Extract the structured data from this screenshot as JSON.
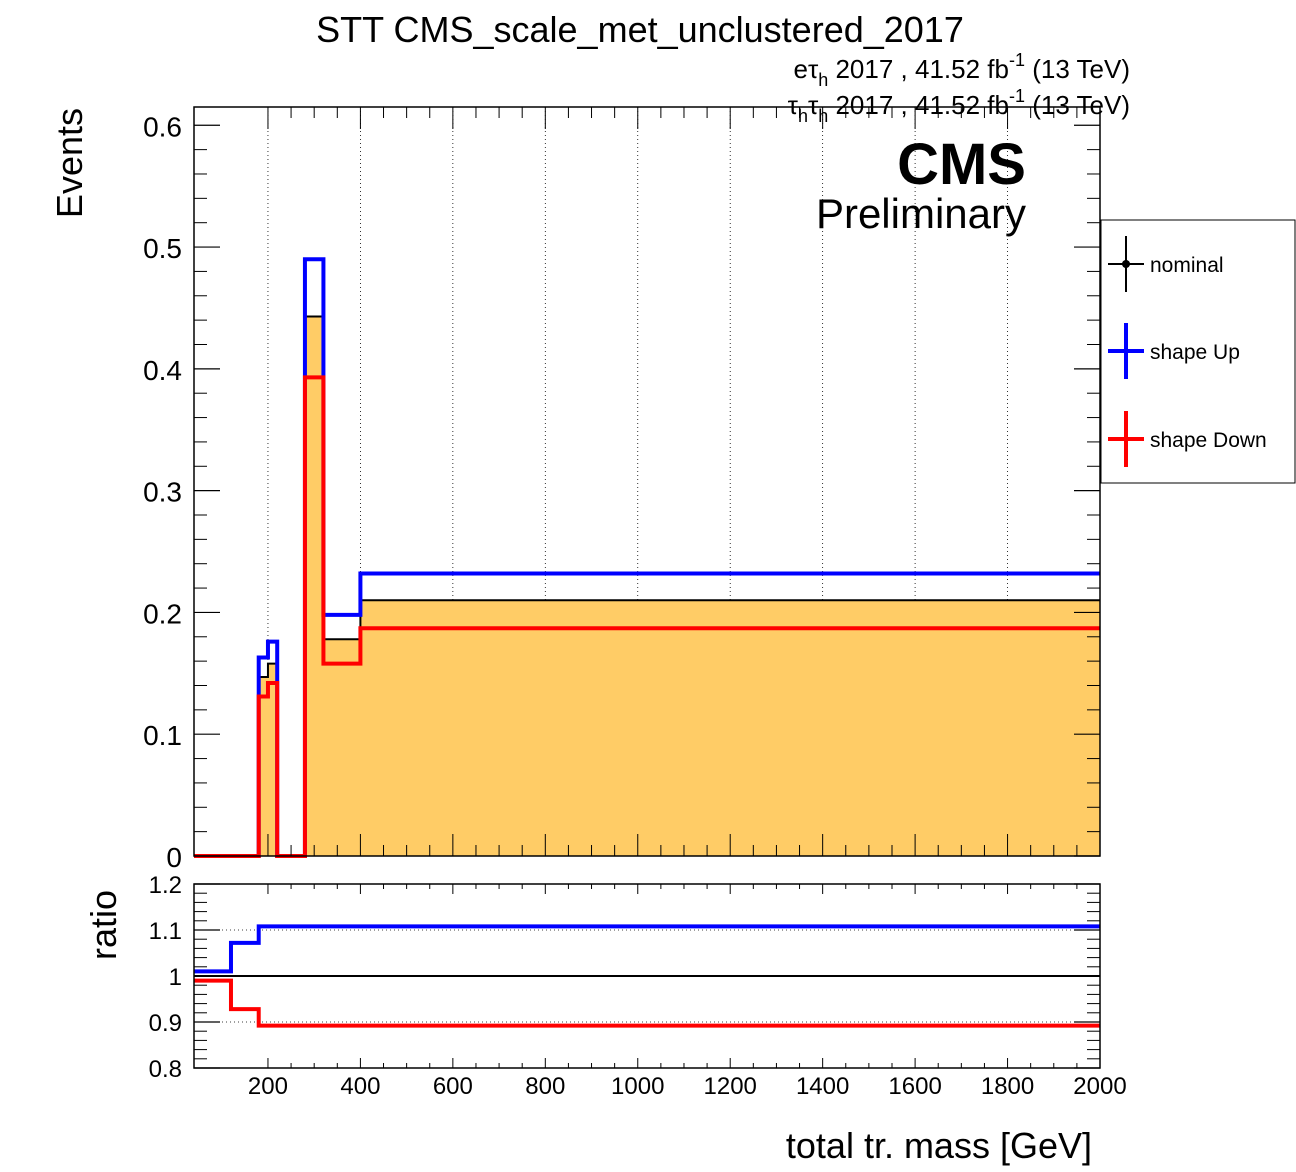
{
  "title": "STT CMS_scale_met_unclustered_2017",
  "lumi_lines": [
    {
      "ch": "e",
      "tau": "τ",
      "sub": "h",
      "rest": " 2017 , 41.52 fb",
      "sup": "-1",
      "end": " (13 TeV)"
    },
    {
      "tau1": "τ",
      "sub1": "h",
      "tau2": "τ",
      "sub2": "h",
      "rest": " 2017 , 41.52 fb",
      "sup": "-1",
      "end": " (13 TeV)"
    }
  ],
  "cms_label": "CMS",
  "prelim_label": "Preliminary",
  "colors": {
    "nominal_fill": "#ffcc66",
    "nominal": "#000000",
    "up": "#0000ff",
    "down": "#ff0000"
  },
  "chart_data": [
    {
      "type": "histogram",
      "ylabel": "Events",
      "xlim": [
        40,
        2000
      ],
      "ylim": [
        0,
        0.615
      ],
      "yticks": [
        "0",
        "0.1",
        "0.2",
        "0.3",
        "0.4",
        "0.5",
        "0.6"
      ],
      "grid": {
        "x": true,
        "y": false
      },
      "legend": {
        "placement": "right",
        "entries": [
          "nominal",
          "shape Up",
          "shape Down"
        ]
      },
      "bin_edges": [
        40,
        180,
        200,
        220,
        230,
        280,
        320,
        400,
        2000
      ],
      "series": [
        {
          "name": "nominal",
          "values": [
            0,
            0.147,
            0.158,
            0,
            0,
            0.443,
            0.178,
            0.21
          ]
        },
        {
          "name": "shape Up",
          "values": [
            0,
            0.163,
            0.176,
            0,
            0,
            0.49,
            0.198,
            0.232
          ]
        },
        {
          "name": "shape Down",
          "values": [
            0,
            0.131,
            0.142,
            0,
            0,
            0.393,
            0.158,
            0.187
          ]
        }
      ]
    },
    {
      "type": "line",
      "ylabel": "ratio",
      "xlabel": "total tr. mass [GeV]",
      "xlim": [
        40,
        2000
      ],
      "ylim": [
        0.8,
        1.2
      ],
      "yticks": [
        "0.8",
        "0.9",
        "1",
        "1.1",
        "1.2"
      ],
      "xticks": [
        "200",
        "400",
        "600",
        "800",
        "1000",
        "1200",
        "1400",
        "1600",
        "1800",
        "2000"
      ],
      "bin_edges": [
        40,
        120,
        180,
        2000
      ],
      "series": [
        {
          "name": "nominal",
          "values": [
            1.0,
            1.0,
            1.0
          ]
        },
        {
          "name": "shape Up",
          "values": [
            1.01,
            1.072,
            1.108
          ]
        },
        {
          "name": "shape Down",
          "values": [
            0.99,
            0.928,
            0.892
          ]
        }
      ]
    }
  ]
}
